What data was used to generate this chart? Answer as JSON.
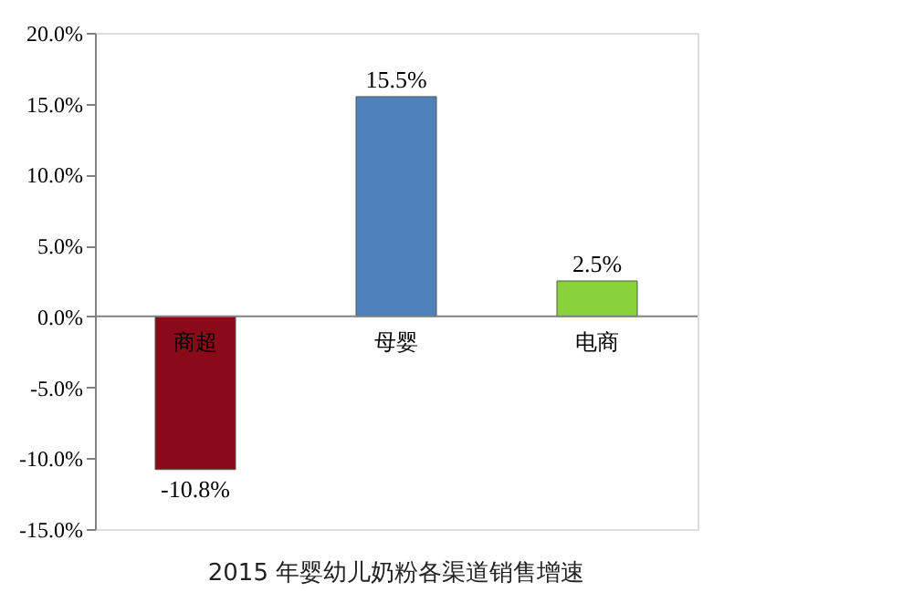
{
  "chart_data": {
    "type": "bar",
    "title": "2015 年婴幼儿奶粉各渠道销售增速",
    "categories": [
      "商超",
      "母婴",
      "电商"
    ],
    "values": [
      -10.8,
      15.5,
      2.5
    ],
    "colors": [
      "#8b0a1a",
      "#4f81bd",
      "#8ad23c"
    ],
    "value_labels": [
      "-10.8%",
      "15.5%",
      "2.5%"
    ],
    "ylim": [
      -15,
      20
    ],
    "yticks": [
      {
        "value": -15,
        "label": "-15.0%"
      },
      {
        "value": -10,
        "label": "-10.0%"
      },
      {
        "value": -5,
        "label": "-5.0%"
      },
      {
        "value": 0,
        "label": "0.0%"
      },
      {
        "value": 5,
        "label": "5.0%"
      },
      {
        "value": 10,
        "label": "10.0%"
      },
      {
        "value": 15,
        "label": "15.0%"
      },
      {
        "value": 20,
        "label": "20.0%"
      }
    ],
    "grid": false
  }
}
